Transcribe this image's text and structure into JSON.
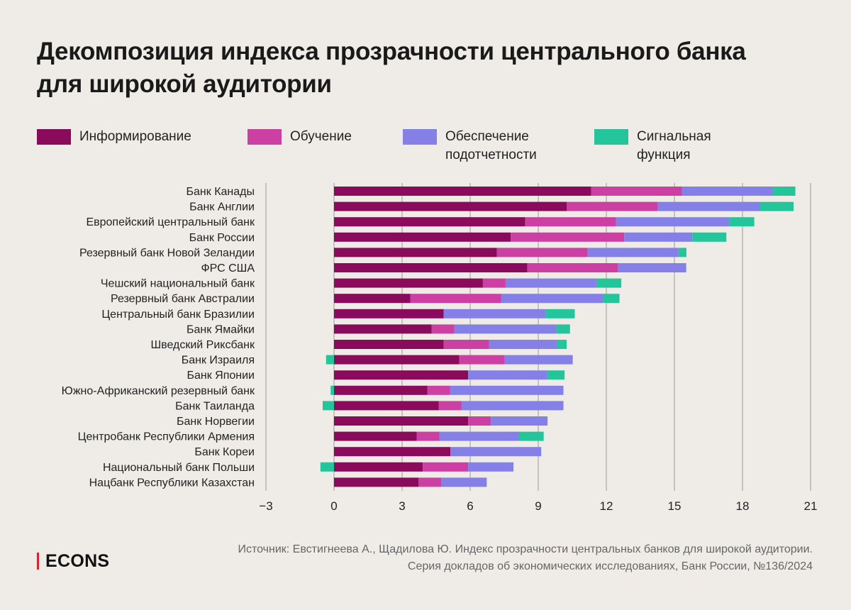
{
  "colors": {
    "background": "#efece7",
    "inform": "#8a0a5c",
    "edu": "#cc3fa3",
    "acc": "#8580e8",
    "sig": "#25c59b",
    "grid": "#9a9a9a",
    "brand_red": "#d4262b"
  },
  "title_lines": [
    "Декомпозиция индекса прозрачности центрального банка",
    "для широкой аудитории"
  ],
  "legend": {
    "inform": "Информирование",
    "edu": "Обучение",
    "acc_line1": "Обеспечение",
    "acc_line2": "подотчетности",
    "sig_line1": "Сигнальная",
    "sig_line2": "функция"
  },
  "chart_data": {
    "type": "bar",
    "orientation": "horizontal",
    "stacked": true,
    "title": "Декомпозиция индекса прозрачности центрального банка для широкой аудитории",
    "xlim": [
      -3,
      21
    ],
    "xticks": [
      -3,
      0,
      3,
      6,
      9,
      12,
      15,
      18,
      21
    ],
    "xtick_labels": [
      "−3",
      "0",
      "3",
      "6",
      "9",
      "12",
      "15",
      "18",
      "21"
    ],
    "grid": "vertical",
    "legend_position": "top",
    "categories": [
      "Банк Канады",
      "Банк Англии",
      "Европейский центральный банк",
      "Банк России",
      "Резервный банк Новой Зеландии",
      "ФРС США",
      "Чешский национальный банк",
      "Резервный банк Австралии",
      "Центральный банк Бразилии",
      "Банк Ямайки",
      "Шведский Риксбанк",
      "Банк Израиля",
      "Банк Японии",
      "Южно-Африканский резервный банк",
      "Банк Таиланда",
      "Банк Норвегии",
      "Центробанк Республики Армения",
      "Банк Кореи",
      "Национальный банк Польши",
      "Нацбанк Республики Казахстан"
    ],
    "series": [
      {
        "name": "Информирование",
        "key": "inform",
        "values": [
          11.33,
          10.25,
          8.42,
          7.79,
          7.18,
          8.52,
          6.56,
          3.36,
          4.83,
          4.3,
          4.83,
          5.52,
          5.91,
          4.11,
          4.61,
          5.91,
          3.64,
          5.13,
          3.91,
          3.73
        ]
      },
      {
        "name": "Обучение",
        "key": "edu",
        "values": [
          4.0,
          4.0,
          4.0,
          5.0,
          4.0,
          4.0,
          1.0,
          4.0,
          0,
          1.0,
          2.0,
          2.0,
          0,
          1.0,
          1.0,
          1.0,
          1.0,
          0,
          2.0,
          1.0
        ]
      },
      {
        "name": "Обеспечение подотчетности",
        "key": "acc",
        "values": [
          4.0,
          4.5,
          5.0,
          3.0,
          4.0,
          3.0,
          4.0,
          4.5,
          4.5,
          4.5,
          3.0,
          3.0,
          3.5,
          5.0,
          4.5,
          2.5,
          3.5,
          4.0,
          2.0,
          2.0
        ]
      },
      {
        "name": "Сигнальная функция",
        "key": "sig",
        "values": [
          1.0,
          1.5,
          1.1,
          1.5,
          0.35,
          0,
          1.1,
          0.72,
          1.28,
          0.6,
          0.42,
          -0.35,
          0.75,
          -0.15,
          -0.5,
          0,
          1.1,
          0,
          -0.6,
          0
        ]
      }
    ]
  },
  "brand": "ECONS",
  "source_lines": [
    "Источник: Евстигнеева А., Щадилова Ю. Индекс прозрачности центральных банков для широкой аудитории.",
    "Серия докладов об экономических исследованиях, Банк России, №136/2024"
  ]
}
